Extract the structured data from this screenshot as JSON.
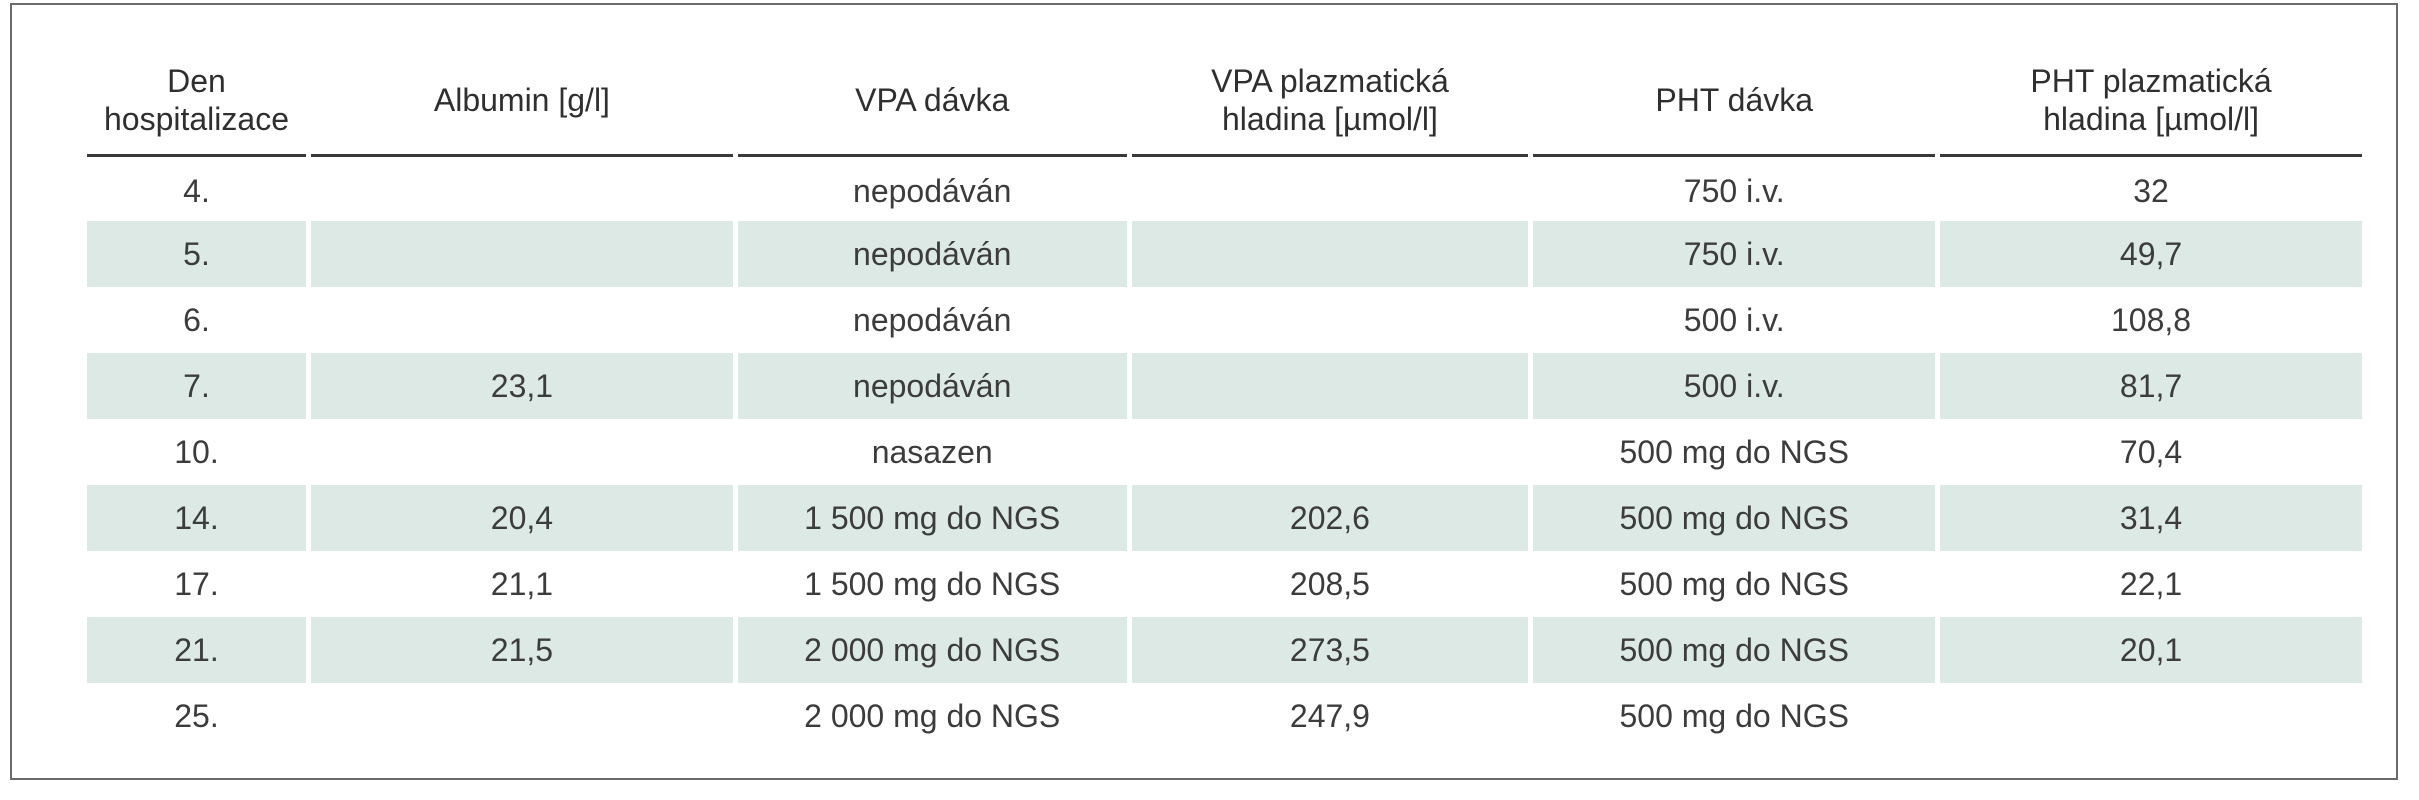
{
  "table": {
    "headers": [
      [
        "Den",
        "hospitalizace"
      ],
      [
        "Albumin [g/l]"
      ],
      [
        "VPA dávka"
      ],
      [
        "VPA plazmatická",
        "hladina [µmol/l]"
      ],
      [
        "PHT dávka"
      ],
      [
        "PHT plazmatická",
        "hladina [µmol/l]"
      ]
    ],
    "rows": [
      [
        "4.",
        "",
        "nepodáván",
        "",
        "750 i.v.",
        "32"
      ],
      [
        "5.",
        "",
        "nepodáván",
        "",
        "750 i.v.",
        "49,7"
      ],
      [
        "6.",
        "",
        "nepodáván",
        "",
        "500 i.v.",
        "108,8"
      ],
      [
        "7.",
        "23,1",
        "nepodáván",
        "",
        "500 i.v.",
        "81,7"
      ],
      [
        "10.",
        "",
        "nasazen",
        "",
        "500 mg do NGS",
        "70,4"
      ],
      [
        "14.",
        "20,4",
        "1 500 mg do NGS",
        "202,6",
        "500 mg do NGS",
        "31,4"
      ],
      [
        "17.",
        "21,1",
        "1 500 mg do NGS",
        "208,5",
        "500 mg do NGS",
        "22,1"
      ],
      [
        "21.",
        "21,5",
        "2 000 mg do NGS",
        "273,5",
        "500 mg do NGS",
        "20,1"
      ],
      [
        "25.",
        "",
        "2 000 mg do NGS",
        "247,9",
        "500 mg do NGS",
        ""
      ]
    ],
    "shaded_row_color": "#dde9e5",
    "rule_color": "#3a3a3a",
    "frame_color": "#6b6b6b"
  }
}
